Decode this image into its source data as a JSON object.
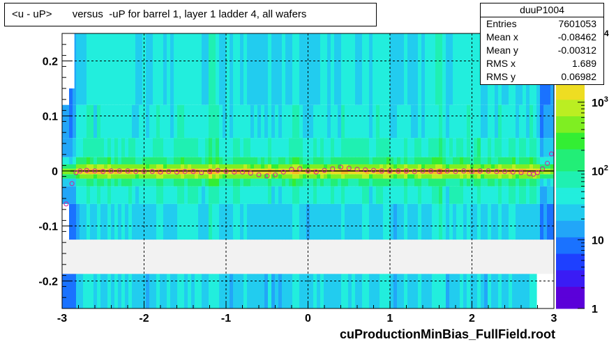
{
  "title": "<u - uP>       versus  -uP for barrel 1, layer 1 ladder 4, all wafers",
  "footer": "cuProductionMinBias_FullField.root",
  "stats": {
    "name": "duuP1004",
    "rows": [
      {
        "label": "Entries",
        "value": "7601053"
      },
      {
        "label": "Mean x",
        "value": "-0.08462"
      },
      {
        "label": "Mean y",
        "value": "-0.00312"
      },
      {
        "label": "RMS x",
        "value": "1.689"
      },
      {
        "label": "RMS y",
        "value": "0.06982"
      }
    ]
  },
  "colors": {
    "profile_marker": "#cc2299",
    "fit_line": "#000000",
    "background_band": "#22eedd",
    "core_band": "#ff9900",
    "empty_region": "#f2f2f2"
  },
  "chart_data": {
    "type": "heatmap",
    "xlim": [
      -3,
      3
    ],
    "ylim": [
      -0.25,
      0.25
    ],
    "x_ticks": [
      -3,
      -2,
      -1,
      0,
      1,
      2,
      3
    ],
    "x_tick_labels": [
      "-3",
      "-2",
      "-1",
      "0",
      "1",
      "2",
      "3"
    ],
    "y_ticks": [
      -0.2,
      -0.1,
      0,
      0.1,
      0.2
    ],
    "y_tick_labels": [
      "-0.2",
      "-0.1",
      "0",
      "0.1",
      "0.2"
    ],
    "z_scale": "log",
    "z_ticks": [
      1,
      10,
      100,
      1000
    ],
    "z_tick_labels": [
      "1",
      "10",
      "10²",
      "10³"
    ],
    "z_top_label_fragment": "4",
    "grid": true,
    "empty_y_band": [
      -0.187,
      -0.125
    ],
    "profile": {
      "x": [
        -2.95,
        -2.88,
        -2.83,
        -2.78,
        -2.7,
        -2.6,
        -2.5,
        -2.4,
        -2.3,
        -2.2,
        -2.1,
        -2.0,
        -1.9,
        -1.8,
        -1.7,
        -1.6,
        -1.5,
        -1.4,
        -1.3,
        -1.2,
        -1.1,
        -1.0,
        -0.9,
        -0.8,
        -0.7,
        -0.6,
        -0.5,
        -0.4,
        -0.3,
        -0.2,
        -0.1,
        0.0,
        0.1,
        0.2,
        0.3,
        0.4,
        0.5,
        0.6,
        0.7,
        0.8,
        0.9,
        1.0,
        1.1,
        1.2,
        1.3,
        1.4,
        1.5,
        1.6,
        1.7,
        1.8,
        1.9,
        2.0,
        2.1,
        2.2,
        2.3,
        2.4,
        2.5,
        2.6,
        2.7,
        2.75,
        2.8,
        2.86,
        2.92,
        2.97
      ],
      "y": [
        -0.06,
        -0.023,
        -0.003,
        0.0,
        0.001,
        0.0,
        -0.001,
        0.0,
        0.0,
        0.0,
        -0.001,
        -0.001,
        -0.001,
        -0.002,
        -0.001,
        -0.002,
        -0.001,
        -0.001,
        -0.003,
        -0.001,
        0.001,
        -0.001,
        -0.002,
        -0.002,
        -0.004,
        -0.007,
        -0.009,
        -0.007,
        -0.002,
        0.003,
        0.004,
        0.0,
        -0.002,
        0.001,
        0.004,
        0.007,
        0.005,
        0.003,
        0.002,
        0.001,
        0.0,
        0.0,
        0.0,
        0.0,
        -0.001,
        0.0,
        0.0,
        -0.001,
        0.0,
        -0.001,
        0.0,
        -0.001,
        0.0,
        0.0,
        -0.001,
        -0.001,
        -0.002,
        -0.003,
        -0.005,
        -0.006,
        -0.003,
        0.004,
        0.014,
        0.031
      ]
    },
    "fit_line": {
      "x": [
        -2.9,
        3.0
      ],
      "y": [
        0.0,
        0.0
      ]
    }
  }
}
